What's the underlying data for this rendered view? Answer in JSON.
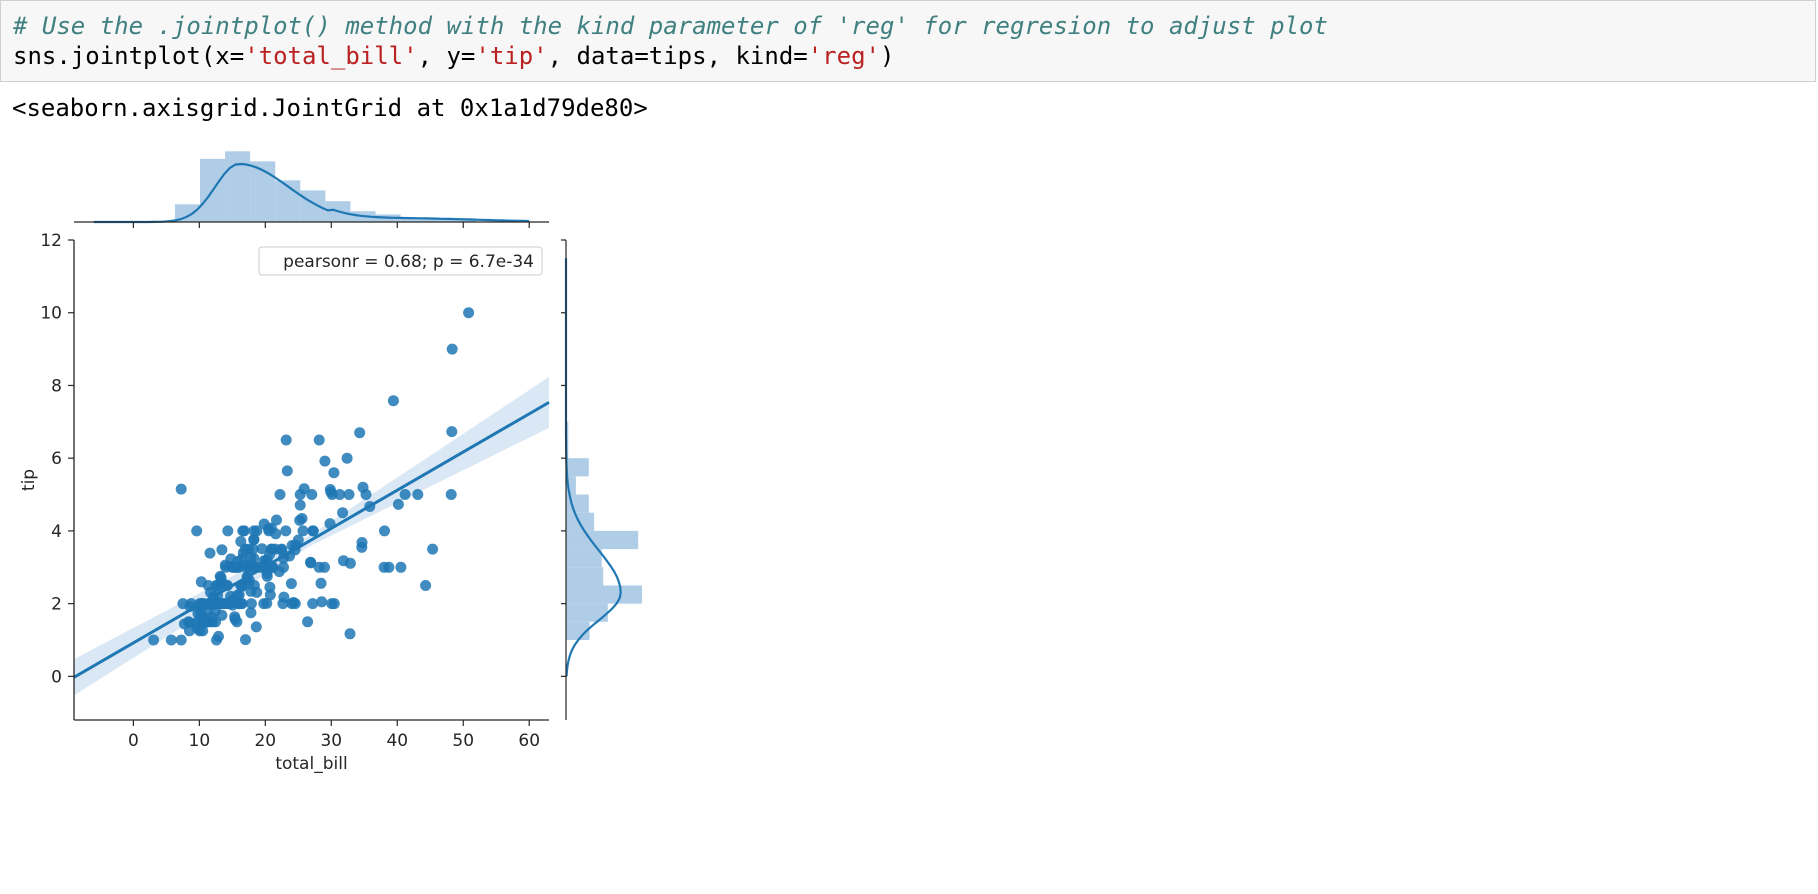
{
  "cell": {
    "comment": "# Use the .jointplot() method with the kind parameter of 'reg' for regresion to adjust plot",
    "code_parts": [
      "sns.jointplot(x=",
      "'total_bill'",
      ", y=",
      "'tip'",
      ", data=tips, kind=",
      "'reg'",
      ")"
    ]
  },
  "output": {
    "repr": "<seaborn.axisgrid.JointGrid at 0x1a1d79de80>"
  },
  "colors": {
    "point": "#1f77b4",
    "hist": "#a6c8e3",
    "ci_band": "#c6dbef",
    "code_comment": "#408080",
    "code_string": "#ba2121"
  },
  "chart_data": {
    "type": "scatter",
    "kind": "reg",
    "xlabel": "total_bill",
    "ylabel": "tip",
    "xlim": [
      -9,
      63
    ],
    "ylim": [
      -1.2,
      12
    ],
    "xticks": [
      0,
      10,
      20,
      30,
      40,
      50,
      60
    ],
    "yticks": [
      0,
      2,
      4,
      6,
      8,
      10,
      12
    ],
    "annotation": "pearsonr = 0.68; p = 6.7e-34",
    "legend_position": "top-right",
    "grid": false,
    "regression": {
      "slope": 0.105,
      "intercept": 0.92,
      "ci_left_halfwidth": 0.5,
      "ci_center_halfwidth": 0.15,
      "ci_right_halfwidth": 0.7
    },
    "points": [
      [
        3.07,
        1.0
      ],
      [
        5.75,
        1.0
      ],
      [
        7.25,
        1.0
      ],
      [
        7.25,
        5.15
      ],
      [
        7.51,
        2.0
      ],
      [
        7.74,
        1.44
      ],
      [
        8.35,
        1.5
      ],
      [
        8.51,
        1.25
      ],
      [
        8.52,
        1.48
      ],
      [
        8.58,
        1.92
      ],
      [
        8.77,
        2.0
      ],
      [
        9.55,
        1.45
      ],
      [
        9.6,
        4.0
      ],
      [
        9.68,
        1.32
      ],
      [
        9.78,
        1.73
      ],
      [
        9.94,
        1.56
      ],
      [
        10.07,
        1.25
      ],
      [
        10.07,
        1.83
      ],
      [
        10.09,
        2.0
      ],
      [
        10.27,
        1.71
      ],
      [
        10.29,
        2.6
      ],
      [
        10.33,
        1.67
      ],
      [
        10.33,
        2.0
      ],
      [
        10.34,
        1.66
      ],
      [
        10.34,
        2.0
      ],
      [
        10.51,
        1.25
      ],
      [
        10.59,
        1.61
      ],
      [
        10.63,
        2.0
      ],
      [
        10.65,
        1.5
      ],
      [
        10.77,
        1.47
      ],
      [
        11.02,
        1.98
      ],
      [
        11.17,
        1.5
      ],
      [
        11.24,
        1.76
      ],
      [
        11.35,
        2.5
      ],
      [
        11.38,
        2.0
      ],
      [
        11.59,
        1.5
      ],
      [
        11.61,
        3.39
      ],
      [
        11.69,
        2.31
      ],
      [
        11.87,
        1.63
      ],
      [
        12.02,
        1.97
      ],
      [
        12.03,
        1.5
      ],
      [
        12.16,
        2.2
      ],
      [
        12.26,
        2.0
      ],
      [
        12.43,
        1.8
      ],
      [
        12.46,
        1.5
      ],
      [
        12.54,
        2.5
      ],
      [
        12.6,
        1.0
      ],
      [
        12.66,
        2.5
      ],
      [
        12.69,
        2.0
      ],
      [
        12.74,
        2.01
      ],
      [
        12.76,
        2.23
      ],
      [
        12.9,
        1.1
      ],
      [
        13.0,
        2.0
      ],
      [
        13.03,
        2.0
      ],
      [
        13.13,
        2.0
      ],
      [
        13.16,
        2.75
      ],
      [
        13.27,
        2.5
      ],
      [
        13.28,
        2.72
      ],
      [
        13.37,
        2.0
      ],
      [
        13.39,
        2.61
      ],
      [
        13.42,
        1.68
      ],
      [
        13.42,
        3.48
      ],
      [
        13.51,
        2.0
      ],
      [
        13.81,
        2.0
      ],
      [
        13.94,
        3.06
      ],
      [
        14.0,
        3.0
      ],
      [
        14.07,
        2.5
      ],
      [
        14.15,
        2.0
      ],
      [
        14.26,
        2.5
      ],
      [
        14.31,
        4.0
      ],
      [
        14.48,
        2.0
      ],
      [
        14.52,
        2.0
      ],
      [
        14.73,
        2.2
      ],
      [
        14.78,
        3.23
      ],
      [
        14.83,
        3.02
      ],
      [
        15.01,
        2.09
      ],
      [
        15.04,
        1.96
      ],
      [
        15.06,
        3.0
      ],
      [
        15.36,
        1.64
      ],
      [
        15.38,
        3.0
      ],
      [
        15.42,
        1.57
      ],
      [
        15.48,
        2.02
      ],
      [
        15.53,
        3.0
      ],
      [
        15.69,
        1.5
      ],
      [
        15.69,
        3.0
      ],
      [
        15.77,
        2.23
      ],
      [
        15.81,
        3.16
      ],
      [
        15.95,
        2.0
      ],
      [
        15.98,
        2.03
      ],
      [
        15.98,
        3.0
      ],
      [
        16.0,
        2.0
      ],
      [
        16.04,
        2.24
      ],
      [
        16.27,
        2.5
      ],
      [
        16.29,
        3.71
      ],
      [
        16.31,
        2.0
      ],
      [
        16.4,
        2.5
      ],
      [
        16.45,
        2.47
      ],
      [
        16.47,
        3.23
      ],
      [
        16.49,
        2.0
      ],
      [
        16.58,
        4.0
      ],
      [
        16.66,
        3.4
      ],
      [
        16.82,
        4.0
      ],
      [
        16.93,
        3.07
      ],
      [
        16.97,
        3.5
      ],
      [
        16.99,
        1.01
      ],
      [
        17.07,
        3.0
      ],
      [
        17.26,
        2.74
      ],
      [
        17.29,
        2.71
      ],
      [
        17.46,
        2.54
      ],
      [
        17.47,
        3.5
      ],
      [
        17.51,
        3.0
      ],
      [
        17.59,
        2.64
      ],
      [
        17.78,
        3.27
      ],
      [
        17.81,
        2.34
      ],
      [
        17.82,
        1.75
      ],
      [
        17.89,
        2.0
      ],
      [
        17.92,
        3.08
      ],
      [
        18.04,
        3.0
      ],
      [
        18.15,
        3.5
      ],
      [
        18.24,
        3.76
      ],
      [
        18.26,
        3.25
      ],
      [
        18.28,
        4.0
      ],
      [
        18.29,
        3.76
      ],
      [
        18.35,
        2.5
      ],
      [
        18.43,
        3.0
      ],
      [
        18.64,
        1.36
      ],
      [
        18.69,
        2.31
      ],
      [
        18.71,
        4.0
      ],
      [
        18.78,
        3.0
      ],
      [
        19.44,
        3.0
      ],
      [
        19.49,
        3.51
      ],
      [
        19.65,
        3.0
      ],
      [
        19.77,
        2.0
      ],
      [
        19.81,
        4.19
      ],
      [
        19.82,
        3.18
      ],
      [
        20.08,
        3.15
      ],
      [
        20.23,
        2.01
      ],
      [
        20.27,
        2.83
      ],
      [
        20.29,
        2.75
      ],
      [
        20.29,
        3.21
      ],
      [
        20.45,
        3.0
      ],
      [
        20.49,
        4.06
      ],
      [
        20.53,
        4.0
      ],
      [
        20.65,
        3.35
      ],
      [
        20.69,
        2.45
      ],
      [
        20.76,
        2.24
      ],
      [
        20.9,
        3.5
      ],
      [
        20.92,
        4.08
      ],
      [
        21.01,
        3.5
      ],
      [
        21.01,
        3.0
      ],
      [
        21.16,
        3.0
      ],
      [
        21.5,
        3.5
      ],
      [
        21.58,
        3.92
      ],
      [
        21.7,
        4.3
      ],
      [
        22.12,
        2.88
      ],
      [
        22.23,
        5.0
      ],
      [
        22.42,
        3.48
      ],
      [
        22.49,
        3.5
      ],
      [
        22.67,
        2.0
      ],
      [
        22.75,
        3.25
      ],
      [
        22.76,
        3.0
      ],
      [
        22.82,
        2.18
      ],
      [
        23.1,
        4.0
      ],
      [
        23.17,
        6.5
      ],
      [
        23.33,
        5.65
      ],
      [
        23.68,
        3.31
      ],
      [
        23.95,
        2.55
      ],
      [
        24.01,
        2.0
      ],
      [
        24.06,
        3.6
      ],
      [
        24.27,
        2.03
      ],
      [
        24.52,
        3.48
      ],
      [
        24.55,
        2.0
      ],
      [
        24.59,
        3.61
      ],
      [
        25.0,
        3.75
      ],
      [
        25.21,
        4.29
      ],
      [
        25.28,
        5.0
      ],
      [
        25.29,
        4.71
      ],
      [
        25.56,
        4.34
      ],
      [
        25.71,
        4.0
      ],
      [
        25.89,
        5.16
      ],
      [
        26.41,
        1.5
      ],
      [
        26.86,
        3.14
      ],
      [
        26.88,
        3.12
      ],
      [
        27.05,
        5.0
      ],
      [
        27.18,
        2.0
      ],
      [
        27.2,
        4.0
      ],
      [
        27.28,
        4.0
      ],
      [
        28.15,
        3.0
      ],
      [
        28.17,
        6.5
      ],
      [
        28.44,
        2.56
      ],
      [
        28.55,
        2.05
      ],
      [
        28.97,
        3.0
      ],
      [
        29.03,
        5.92
      ],
      [
        29.8,
        4.2
      ],
      [
        29.85,
        5.14
      ],
      [
        29.93,
        5.07
      ],
      [
        30.06,
        2.0
      ],
      [
        30.14,
        5.0
      ],
      [
        30.4,
        5.6
      ],
      [
        30.46,
        2.0
      ],
      [
        31.27,
        5.0
      ],
      [
        31.71,
        4.5
      ],
      [
        31.85,
        3.18
      ],
      [
        32.4,
        6.0
      ],
      [
        32.68,
        5.0
      ],
      [
        32.83,
        1.17
      ],
      [
        32.9,
        3.11
      ],
      [
        34.3,
        6.7
      ],
      [
        34.63,
        3.55
      ],
      [
        34.65,
        3.68
      ],
      [
        34.81,
        5.2
      ],
      [
        35.26,
        5.0
      ],
      [
        35.83,
        4.67
      ],
      [
        38.01,
        3.0
      ],
      [
        38.07,
        4.0
      ],
      [
        38.73,
        3.0
      ],
      [
        39.42,
        7.58
      ],
      [
        40.17,
        4.73
      ],
      [
        40.55,
        3.0
      ],
      [
        41.19,
        5.0
      ],
      [
        43.11,
        5.0
      ],
      [
        44.3,
        2.5
      ],
      [
        45.35,
        3.5
      ],
      [
        48.17,
        5.0
      ],
      [
        48.27,
        6.73
      ],
      [
        48.33,
        9.0
      ],
      [
        50.81,
        10.0
      ]
    ],
    "marginal_x": {
      "bin_edges": [
        6.3,
        10.1,
        13.9,
        17.7,
        21.5,
        25.3,
        29.1,
        32.9,
        36.7,
        40.5,
        44.3,
        48.1,
        51.9
      ],
      "heights": [
        0.28,
        1.0,
        1.12,
        0.96,
        0.66,
        0.5,
        0.33,
        0.17,
        0.12,
        0.06,
        0.05,
        0.06
      ]
    },
    "marginal_y": {
      "bin_edges": [
        1.0,
        1.5,
        2.0,
        2.5,
        3.0,
        3.5,
        4.0,
        4.5,
        5.0,
        5.5,
        6.0,
        6.5,
        7.0
      ],
      "widths": [
        0.31,
        0.55,
        1.0,
        0.49,
        0.47,
        0.95,
        0.37,
        0.3,
        0.13,
        0.3,
        0.03,
        0.03
      ]
    }
  }
}
